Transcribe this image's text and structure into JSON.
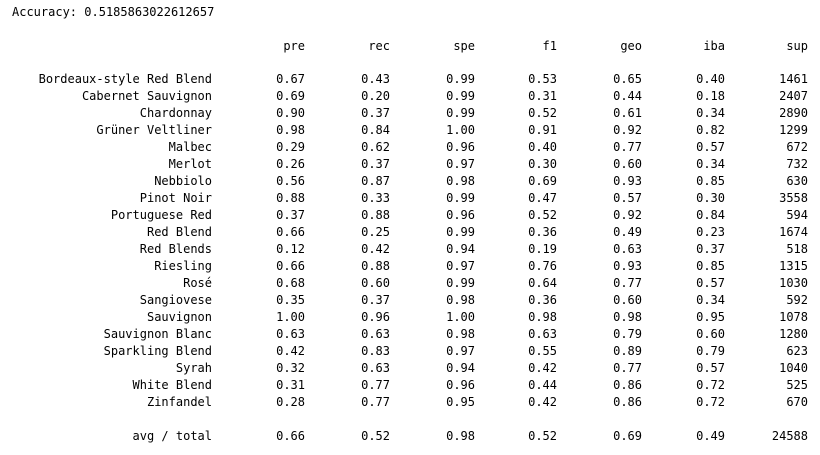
{
  "accuracy_label": "Accuracy:",
  "accuracy_value": "0.5185863022612657",
  "columns": [
    "pre",
    "rec",
    "spe",
    "f1",
    "geo",
    "iba",
    "sup"
  ],
  "rows": [
    {
      "label": "Bordeaux-style Red Blend",
      "values": [
        "0.67",
        "0.43",
        "0.99",
        "0.53",
        "0.65",
        "0.40",
        "1461"
      ]
    },
    {
      "label": "Cabernet Sauvignon",
      "values": [
        "0.69",
        "0.20",
        "0.99",
        "0.31",
        "0.44",
        "0.18",
        "2407"
      ]
    },
    {
      "label": "Chardonnay",
      "values": [
        "0.90",
        "0.37",
        "0.99",
        "0.52",
        "0.61",
        "0.34",
        "2890"
      ]
    },
    {
      "label": "Grüner Veltliner",
      "values": [
        "0.98",
        "0.84",
        "1.00",
        "0.91",
        "0.92",
        "0.82",
        "1299"
      ]
    },
    {
      "label": "Malbec",
      "values": [
        "0.29",
        "0.62",
        "0.96",
        "0.40",
        "0.77",
        "0.57",
        "672"
      ]
    },
    {
      "label": "Merlot",
      "values": [
        "0.26",
        "0.37",
        "0.97",
        "0.30",
        "0.60",
        "0.34",
        "732"
      ]
    },
    {
      "label": "Nebbiolo",
      "values": [
        "0.56",
        "0.87",
        "0.98",
        "0.69",
        "0.93",
        "0.85",
        "630"
      ]
    },
    {
      "label": "Pinot Noir",
      "values": [
        "0.88",
        "0.33",
        "0.99",
        "0.47",
        "0.57",
        "0.30",
        "3558"
      ]
    },
    {
      "label": "Portuguese Red",
      "values": [
        "0.37",
        "0.88",
        "0.96",
        "0.52",
        "0.92",
        "0.84",
        "594"
      ]
    },
    {
      "label": "Red Blend",
      "values": [
        "0.66",
        "0.25",
        "0.99",
        "0.36",
        "0.49",
        "0.23",
        "1674"
      ]
    },
    {
      "label": "Red Blends",
      "values": [
        "0.12",
        "0.42",
        "0.94",
        "0.19",
        "0.63",
        "0.37",
        "518"
      ]
    },
    {
      "label": "Riesling",
      "values": [
        "0.66",
        "0.88",
        "0.97",
        "0.76",
        "0.93",
        "0.85",
        "1315"
      ]
    },
    {
      "label": "Rosé",
      "values": [
        "0.68",
        "0.60",
        "0.99",
        "0.64",
        "0.77",
        "0.57",
        "1030"
      ]
    },
    {
      "label": "Sangiovese",
      "values": [
        "0.35",
        "0.37",
        "0.98",
        "0.36",
        "0.60",
        "0.34",
        "592"
      ]
    },
    {
      "label": "Sauvignon",
      "values": [
        "1.00",
        "0.96",
        "1.00",
        "0.98",
        "0.98",
        "0.95",
        "1078"
      ]
    },
    {
      "label": "Sauvignon Blanc",
      "values": [
        "0.63",
        "0.63",
        "0.98",
        "0.63",
        "0.79",
        "0.60",
        "1280"
      ]
    },
    {
      "label": "Sparkling Blend",
      "values": [
        "0.42",
        "0.83",
        "0.97",
        "0.55",
        "0.89",
        "0.79",
        "623"
      ]
    },
    {
      "label": "Syrah",
      "values": [
        "0.32",
        "0.63",
        "0.94",
        "0.42",
        "0.77",
        "0.57",
        "1040"
      ]
    },
    {
      "label": "White Blend",
      "values": [
        "0.31",
        "0.77",
        "0.96",
        "0.44",
        "0.86",
        "0.72",
        "525"
      ]
    },
    {
      "label": "Zinfandel",
      "values": [
        "0.28",
        "0.77",
        "0.95",
        "0.42",
        "0.86",
        "0.72",
        "670"
      ]
    }
  ],
  "total": {
    "label": "avg / total",
    "values": [
      "0.66",
      "0.52",
      "0.98",
      "0.52",
      "0.69",
      "0.49",
      "24588"
    ]
  }
}
